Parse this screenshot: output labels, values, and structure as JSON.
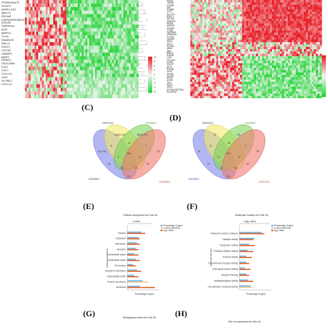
{
  "panels": {
    "C": "(C)",
    "D": "(D)",
    "E": "(E)",
    "F": "(F)",
    "G": "(G)",
    "H": "(H)"
  },
  "heatmap_left": {
    "genes": [
      "STMN4/AACS",
      "GCNT3",
      "AFAP1-AS1",
      "ABCC3",
      "PROM2",
      "CDKN2A/RCBDH1",
      "GOLM1",
      "TMPRSS4",
      "AGR",
      "MMP12",
      "TOX3",
      "KIAA0101",
      "SALL4",
      "PSAT1",
      "COCA1",
      "CEABP1",
      "MMP1",
      "SPINK1",
      "CEACAM5",
      "LGI3",
      "CST1",
      "CXCL14",
      "CDH",
      "OLFML2",
      "CXCL13"
    ],
    "legend_ticks": [
      "10",
      "8",
      "6",
      "4",
      "2",
      "0",
      "-2",
      "-4",
      "-6"
    ]
  },
  "heatmap_right": {
    "genes": [
      "KDFB",
      "TMAB1",
      "CCNB1",
      "VNL",
      "STMN1",
      "CST1",
      "SLC7A1",
      "ESPL1",
      "KIF20A",
      "ANKRD1",
      "MCM2",
      "AURKA",
      "CDKN3",
      "TYMS",
      "TMPRSS",
      "SPANXD1",
      "PYCR1",
      "CENPF",
      "NEK2",
      "KIFC1",
      "FOXM1",
      "HBA1",
      "HBA",
      "BIRC5",
      "SYAM1",
      "LUM",
      "COL1A1",
      "CDH5",
      "GOLTF",
      "SPT2",
      "RTKN2",
      "CDH7",
      "MCM3",
      "CLDN1",
      "SFTP",
      "AGRE",
      "CPD",
      "GKP2",
      "CSF3",
      "SFTPA2/SFTPA1",
      "SCGB1A1"
    ],
    "legend_ticks": [
      "10",
      "8",
      "6",
      "4",
      "2",
      "0",
      "-2",
      "-4",
      "-6"
    ]
  },
  "venn_left": {
    "sets": [
      "GSE19804",
      "GSE27262",
      "GSE18842",
      "GSE32863"
    ],
    "regions": [
      "5(1.1%)",
      "114(22.1%)",
      "85(22.1%)",
      "172",
      "41",
      "22",
      "1",
      "8",
      "13",
      "146",
      "53",
      "94",
      "59",
      "174",
      "33"
    ]
  },
  "venn_right": {
    "sets": [
      "GSE19804",
      "GSE40418",
      "GSE18842",
      "GSE27262"
    ],
    "regions": [
      "91",
      "37",
      "163",
      "221",
      "31",
      "26",
      "1",
      "12",
      "11",
      "137",
      "97",
      "42",
      "34",
      "110",
      "53"
    ]
  },
  "bar_left": {
    "title": "Cellular component for Hub Gs",
    "subtitle": "p-value",
    "legend": [
      "Percentage of gene",
      "p-value reference",
      "-lg p-value"
    ],
    "categories": [
      "Nucleus",
      "Cytoplasm",
      "Membrane",
      "Exosome",
      "Intracellular space",
      "Extracellular space",
      "Cell surface",
      "Integral to membrane",
      "Extracellular matrix",
      "Plasma membrane",
      "Nucleolus"
    ],
    "ylabel": "Cellular component",
    "xlabel": "Percentage of gene"
  },
  "bar_right": {
    "title": "Molecular function for Hub Gs",
    "subtitle": "Log(p-value)",
    "legend": [
      "Percentage of gene",
      "p-value reference",
      "-lg p-value"
    ],
    "categories": [
      "Molecular function unknown",
      "Catalytic activity",
      "Transporter activity",
      "Protease inhibitor activity",
      "Enzyme activity",
      "Peroxiredoxin receptor activity",
      "DNA repair protein activity",
      "Receptor binding",
      "Metallopeptidase activity",
      "Cell adhesion molecule activity"
    ],
    "ylabel": "Molecular function",
    "xlabel": "Percentage of gene"
  },
  "captions": {
    "g_bottom": "Biological process for Hub Gs",
    "h_bottom": "Site of expression for Hub Gs"
  },
  "colors": {
    "red": "#e8212a",
    "green": "#2bd43b",
    "white": "#f4f4f4",
    "blue_bar": "#6aaedf",
    "orange_bar": "#e35a1f",
    "tan_bar": "#e8c38a"
  }
}
